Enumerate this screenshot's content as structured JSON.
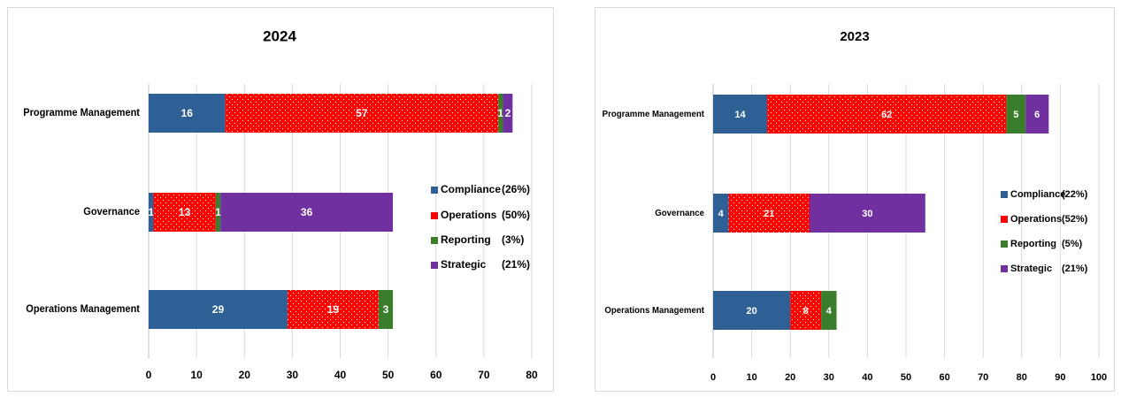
{
  "chart_data": [
    {
      "type": "stacked-bar-horizontal",
      "title": "2024",
      "categories": [
        "Programme Management",
        "Governance",
        "Operations Management"
      ],
      "series": [
        {
          "name": "Compliance",
          "legend_note": "(26%)",
          "color": "#2e5f95",
          "values": [
            16,
            1,
            29
          ]
        },
        {
          "name": "Operations",
          "legend_note": "(50%)",
          "color": "#ff0000",
          "pattern": "dots",
          "values": [
            57,
            13,
            19
          ]
        },
        {
          "name": "Reporting",
          "legend_note": "(3%)",
          "color": "#3a7d2a",
          "values": [
            1,
            1,
            3
          ]
        },
        {
          "name": "Strategic",
          "legend_note": "(21%)",
          "color": "#7030a0",
          "values": [
            2,
            36,
            null
          ]
        }
      ],
      "xlim": [
        0,
        80
      ],
      "xticks": [
        0,
        10,
        20,
        30,
        40,
        50,
        60,
        70,
        80
      ],
      "grid": true,
      "legend": "right"
    },
    {
      "type": "stacked-bar-horizontal",
      "title": "2023",
      "categories": [
        "Programme Management",
        "Governance",
        "Operations Management"
      ],
      "series": [
        {
          "name": "Compliance",
          "legend_note": "(22%)",
          "color": "#2e5f95",
          "values": [
            14,
            4,
            20
          ]
        },
        {
          "name": "Operations",
          "legend_note": "(52%)",
          "color": "#ff0000",
          "pattern": "dots",
          "values": [
            62,
            21,
            8
          ]
        },
        {
          "name": "Reporting",
          "legend_note": "(5%)",
          "color": "#3a7d2a",
          "values": [
            5,
            null,
            4
          ]
        },
        {
          "name": "Strategic",
          "legend_note": "(21%)",
          "color": "#7030a0",
          "values": [
            6,
            30,
            null
          ]
        }
      ],
      "xlim": [
        0,
        100
      ],
      "xticks": [
        0,
        10,
        20,
        30,
        40,
        50,
        60,
        70,
        80,
        90,
        100
      ],
      "grid": true,
      "legend": "right"
    }
  ]
}
